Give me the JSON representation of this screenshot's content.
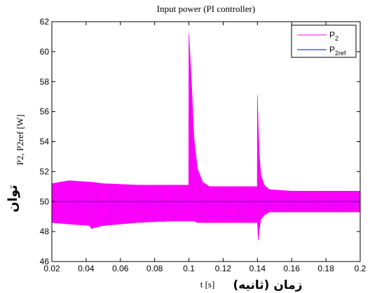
{
  "chart_data": {
    "type": "line",
    "title": "Input power (PI controller)",
    "xlabel": "t [s]",
    "xlabel_fa": "زمان (ثانیه)",
    "ylabel": "P2, P2ref [W]",
    "ylabel_fa": "توان",
    "xlim": [
      0.02,
      0.2
    ],
    "ylim": [
      46,
      62
    ],
    "xticks": [
      "0.02",
      "0.04",
      "0.06",
      "0.08",
      "0.1",
      "0.12",
      "0.14",
      "0.16",
      "0.18",
      "0.2"
    ],
    "yticks": [
      "46",
      "48",
      "50",
      "52",
      "54",
      "56",
      "58",
      "60",
      "62"
    ],
    "grid": false,
    "legend_position": "top-right",
    "series": [
      {
        "name": "P",
        "name_sub": "2",
        "color": "#ff00ff",
        "envelope_x": [
          0.02,
          0.03,
          0.042,
          0.043,
          0.05,
          0.07,
          0.09,
          0.0999,
          0.1,
          0.1015,
          0.103,
          0.105,
          0.108,
          0.112,
          0.12,
          0.13,
          0.1399,
          0.14,
          0.1405,
          0.1412,
          0.142,
          0.144,
          0.147,
          0.16,
          0.18,
          0.2
        ],
        "envelope_upper": [
          51.2,
          51.4,
          51.3,
          51.3,
          51.2,
          51.1,
          51.1,
          51.1,
          61.2,
          58.0,
          54.2,
          52.2,
          51.3,
          51.0,
          51.0,
          51.0,
          51.0,
          57.1,
          55.0,
          53.0,
          51.8,
          51.1,
          50.8,
          50.7,
          50.7,
          50.7
        ],
        "envelope_lower": [
          48.6,
          48.5,
          48.4,
          48.2,
          48.4,
          48.6,
          48.7,
          48.7,
          48.7,
          48.7,
          48.7,
          48.6,
          48.6,
          48.6,
          48.6,
          48.6,
          48.6,
          48.6,
          47.4,
          48.2,
          48.8,
          49.1,
          49.3,
          49.3,
          49.3,
          49.3
        ]
      },
      {
        "name": "P",
        "name_sub": "2ref",
        "color": "#0000ff",
        "x": [
          0.02,
          0.2
        ],
        "y": [
          50,
          50
        ]
      }
    ]
  }
}
